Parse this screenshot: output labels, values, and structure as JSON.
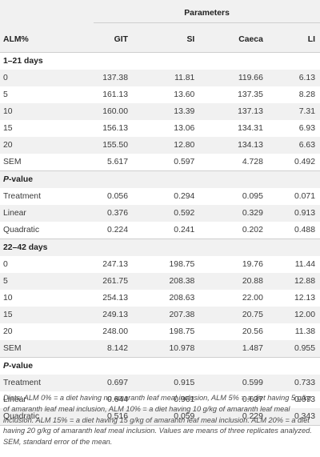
{
  "header": {
    "parameters_label": "Parameters",
    "columns": [
      "ALM%",
      "GIT",
      "SI",
      "Caeca",
      "LI"
    ]
  },
  "sections": [
    {
      "title": "1–21 days",
      "rows": [
        {
          "label": "0",
          "values": [
            "137.38",
            "11.81",
            "119.66",
            "6.13"
          ]
        },
        {
          "label": "5",
          "values": [
            "161.13",
            "13.60",
            "137.35",
            "8.28"
          ]
        },
        {
          "label": "10",
          "values": [
            "160.00",
            "13.39",
            "137.13",
            "7.31"
          ]
        },
        {
          "label": "15",
          "values": [
            "156.13",
            "13.06",
            "134.31",
            "6.93"
          ]
        },
        {
          "label": "20",
          "values": [
            "155.50",
            "12.80",
            "134.13",
            "6.63"
          ]
        },
        {
          "label": "SEM",
          "values": [
            "5.617",
            "0.597",
            "4.728",
            "0.492"
          ]
        }
      ],
      "pvalue_title_p": "P",
      "pvalue_title_rest": "-value",
      "pvalues": [
        {
          "label": "Treatment",
          "values": [
            "0.056",
            "0.294",
            "0.095",
            "0.071"
          ]
        },
        {
          "label": "Linear",
          "values": [
            "0.376",
            "0.592",
            "0.329",
            "0.913"
          ]
        },
        {
          "label": "Quadratic",
          "values": [
            "0.224",
            "0.241",
            "0.202",
            "0.488"
          ]
        }
      ]
    },
    {
      "title": "22–42 days",
      "rows": [
        {
          "label": "0",
          "values": [
            "247.13",
            "198.75",
            "19.76",
            "11.44"
          ]
        },
        {
          "label": "5",
          "values": [
            "261.75",
            "208.38",
            "20.88",
            "12.88"
          ]
        },
        {
          "label": "10",
          "values": [
            "254.13",
            "208.63",
            "22.00",
            "12.13"
          ]
        },
        {
          "label": "15",
          "values": [
            "249.13",
            "207.38",
            "20.75",
            "12.00"
          ]
        },
        {
          "label": "20",
          "values": [
            "248.00",
            "198.75",
            "20.56",
            "11.38"
          ]
        },
        {
          "label": "SEM",
          "values": [
            "8.142",
            "10.978",
            "1.487",
            "0.955"
          ]
        }
      ],
      "pvalue_title_p": "P",
      "pvalue_title_rest": "-value",
      "pvalues": [
        {
          "label": "Treatment",
          "values": [
            "0.697",
            "0.915",
            "0.599",
            "0.733"
          ]
        },
        {
          "label": "Linear",
          "values": [
            "0.644",
            "0.961",
            "0.637",
            "0.673"
          ]
        },
        {
          "label": "Quadratic",
          "values": [
            "0.516",
            "0.059",
            "0.229",
            "0.343"
          ]
        }
      ]
    }
  ],
  "footnote": "Diets: ALM 0% = a diet having no amaranth leaf meal inclusion, ALM 5% = a diet having 5 g/kg of amaranth leaf meal inclusion, ALM 10% = a diet having 10 g/kg of amaranth leaf meal inclusion. ALM 15% = a diet having 15 g/kg of amaranth leaf meal inclusion. ALM 20% = a diet having 20 g/kg of amaranth leaf meal inclusion. Values are means of three replicates analyzed. SEM, standard error of the mean."
}
